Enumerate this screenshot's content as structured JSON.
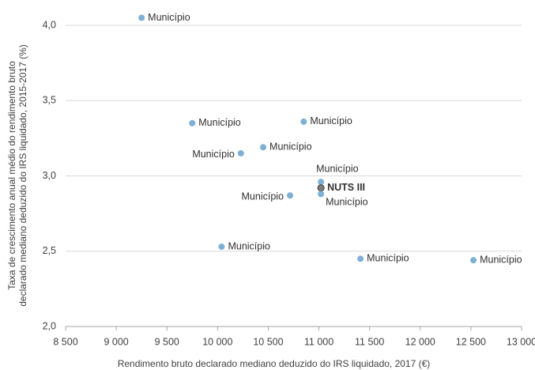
{
  "chart_data": {
    "type": "scatter",
    "x_label": "Rendimento bruto declarado mediano deduzido do IRS liquidado, 2017 (€)",
    "y_label": [
      "Taxa de crescimento anual médio do rendimento bruto",
      "declarado mediano deduzido do IRS liquidado, 2015-2017 (%)"
    ],
    "x": [
      9250,
      9750,
      10850,
      10450,
      10230,
      11020,
      11020,
      11020,
      10715,
      10040,
      11410,
      12525
    ],
    "values": [
      4.05,
      3.35,
      3.36,
      3.19,
      3.15,
      2.96,
      2.92,
      2.88,
      2.87,
      2.53,
      2.45,
      2.44
    ],
    "labels": [
      "Município",
      "Município",
      "Município",
      "Município",
      "Município",
      "Município",
      "NUTS III",
      "Município",
      "Município",
      "Município",
      "Município",
      "Município"
    ],
    "colors": [
      "#7eb0d5",
      "#7eb0d5",
      "#7eb0d5",
      "#7eb0d5",
      "#7eb0d5",
      "#7eb0d5",
      "#7f7f7f",
      "#7eb0d5",
      "#7eb0d5",
      "#7eb0d5",
      "#7eb0d5",
      "#7eb0d5"
    ],
    "xlim": [
      8500,
      13000
    ],
    "xticks": [
      {
        "value": 8500,
        "label": "8 500"
      },
      {
        "value": 9000,
        "label": "9 000"
      },
      {
        "value": 9500,
        "label": "9 500"
      },
      {
        "value": 10000,
        "label": "10 000"
      },
      {
        "value": 10500,
        "label": "10 500"
      },
      {
        "value": 11000,
        "label": "11 000"
      },
      {
        "value": 11500,
        "label": "11 500"
      },
      {
        "value": 12000,
        "label": "12 000"
      },
      {
        "value": 12500,
        "label": "12 500"
      },
      {
        "value": 13000,
        "label": "13 000"
      }
    ],
    "ylim": [
      2.0,
      4.0
    ],
    "yticks": [
      {
        "value": 2.0,
        "label": "2,0"
      },
      {
        "value": 2.5,
        "label": "2,5"
      },
      {
        "value": 3.0,
        "label": "3,0"
      },
      {
        "value": 3.5,
        "label": "3,5"
      },
      {
        "value": 4.0,
        "label": "4,0"
      }
    ],
    "grid": true
  }
}
